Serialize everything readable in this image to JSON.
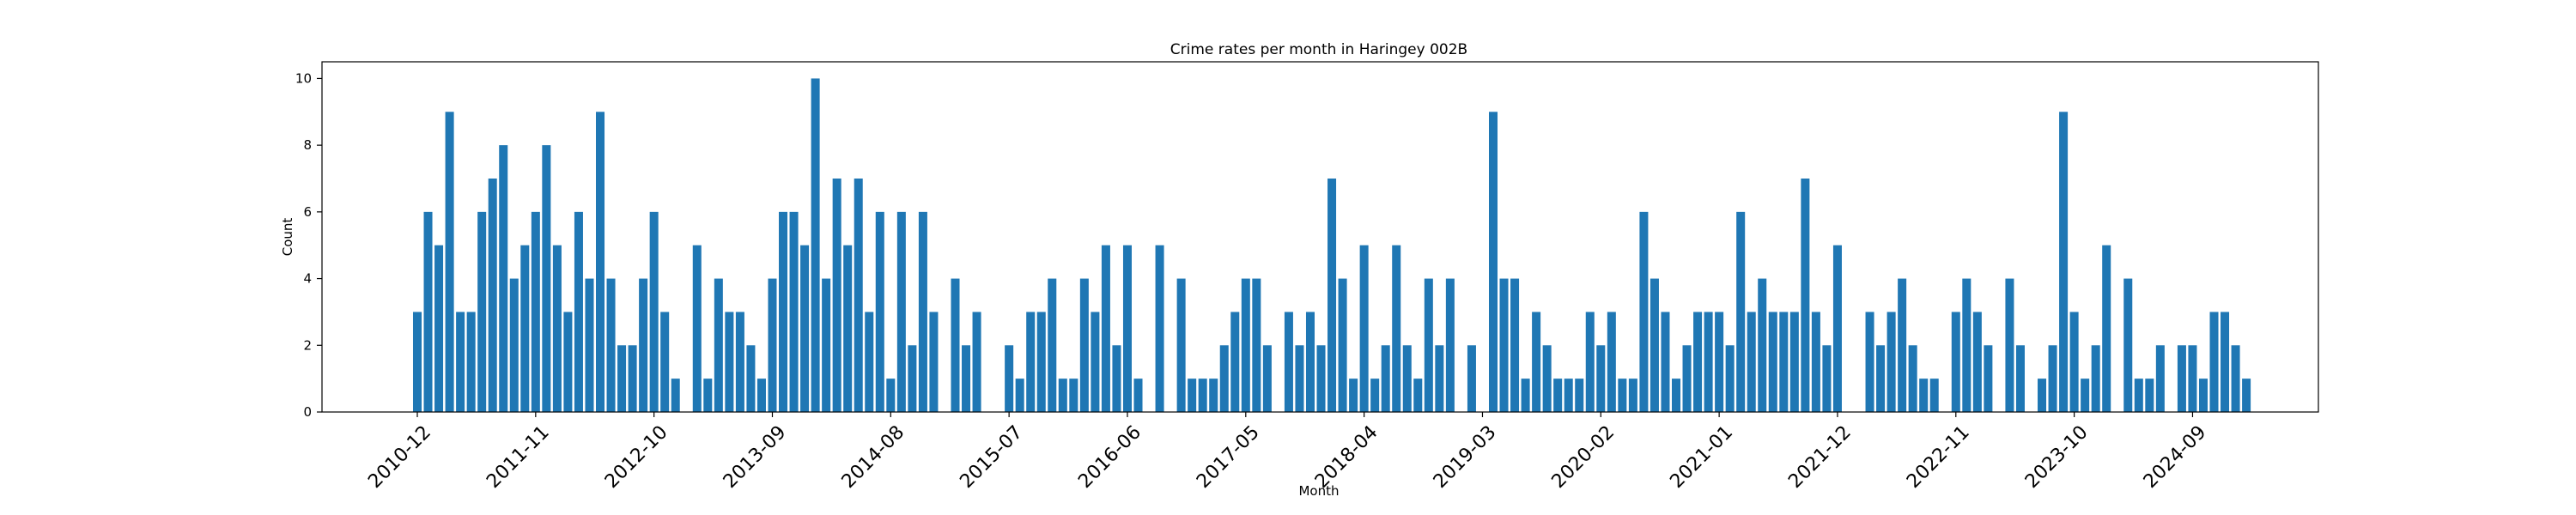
{
  "chart_data": {
    "type": "bar",
    "title": "Crime rates per month in Haringey 002B",
    "xlabel": "Month",
    "ylabel": "Count",
    "ylim": [
      0,
      10.5
    ],
    "yticks": [
      0,
      2,
      4,
      6,
      8,
      10
    ],
    "x_tick_labels": [
      "2010-12",
      "2011-11",
      "2012-10",
      "2013-09",
      "2014-08",
      "2015-07",
      "2016-06",
      "2017-05",
      "2018-04",
      "2019-03",
      "2020-02",
      "2021-01",
      "2021-12",
      "2022-11",
      "2023-10",
      "2024-09"
    ],
    "x_tick_interval_months": 11,
    "start_month": "2010-12",
    "grid": false,
    "color": "#1f77b4",
    "values": [
      3,
      6,
      5,
      9,
      3,
      3,
      6,
      7,
      8,
      4,
      5,
      6,
      8,
      5,
      3,
      6,
      4,
      9,
      4,
      2,
      2,
      4,
      6,
      3,
      1,
      0,
      5,
      1,
      4,
      3,
      3,
      2,
      1,
      4,
      6,
      6,
      5,
      10,
      4,
      7,
      5,
      7,
      3,
      6,
      1,
      6,
      2,
      6,
      3,
      0,
      4,
      2,
      3,
      0,
      0,
      2,
      1,
      3,
      3,
      4,
      1,
      1,
      4,
      3,
      5,
      2,
      5,
      1,
      0,
      5,
      0,
      4,
      1,
      1,
      1,
      2,
      3,
      4,
      4,
      2,
      0,
      3,
      2,
      3,
      2,
      7,
      4,
      1,
      5,
      1,
      2,
      5,
      2,
      1,
      4,
      2,
      4,
      0,
      2,
      0,
      9,
      4,
      4,
      1,
      3,
      2,
      1,
      1,
      1,
      3,
      2,
      3,
      1,
      1,
      6,
      4,
      3,
      1,
      2,
      3,
      3,
      3,
      2,
      6,
      3,
      4,
      3,
      3,
      3,
      7,
      3,
      2,
      5,
      0,
      0,
      3,
      2,
      3,
      4,
      2,
      1,
      1,
      0,
      3,
      4,
      3,
      2,
      0,
      4,
      2,
      0,
      1,
      2,
      9,
      3,
      1,
      2,
      5,
      0,
      4,
      1,
      1,
      2,
      0,
      2,
      2,
      1,
      3,
      3,
      2,
      1
    ]
  }
}
